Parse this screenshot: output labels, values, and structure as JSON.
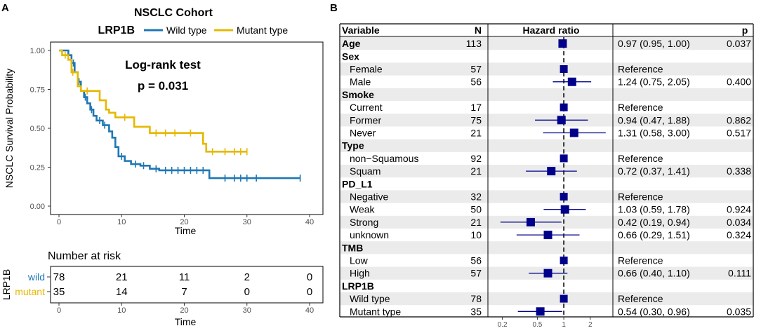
{
  "panel_a": {
    "letter": "A",
    "title": "NSCLC Cohort",
    "legend_title": "LRP1B",
    "test_label": "Log-rank test",
    "p_label": "p = 0.031",
    "risk_title": "Number at risk",
    "risk_ylabel": "LRP1B",
    "risk_groups": [
      {
        "name": "wild",
        "color": "#1f77b4",
        "counts": [
          "78",
          "21",
          "11",
          "2",
          "0"
        ]
      },
      {
        "name": "mutant",
        "color": "#e6b800",
        "counts": [
          "35",
          "14",
          "7",
          "0",
          "0"
        ]
      }
    ],
    "colors": {
      "wild": "#1f77b4",
      "mutant": "#e6b800"
    }
  },
  "panel_b": {
    "letter": "B",
    "headers": {
      "variable": "Variable",
      "n": "N",
      "hr": "Hazard ratio",
      "p": "p"
    },
    "rows": [
      {
        "label": "Age",
        "bold": true,
        "indent": false,
        "n": "113",
        "est": 0.97,
        "lo": 0.95,
        "hi": 1.0,
        "ci": "0.97 (0.95, 1.00)",
        "p": "0.037",
        "shade": true
      },
      {
        "label": "Sex",
        "bold": true,
        "indent": false,
        "n": "",
        "est": null,
        "ci": "",
        "p": "",
        "shade": false
      },
      {
        "label": "Female",
        "bold": false,
        "indent": true,
        "n": "57",
        "est": 1.0,
        "lo": 1.0,
        "hi": 1.0,
        "ci": "Reference",
        "p": "",
        "shade": true
      },
      {
        "label": "Male",
        "bold": false,
        "indent": true,
        "n": "56",
        "est": 1.24,
        "lo": 0.75,
        "hi": 2.05,
        "ci": "1.24 (0.75, 2.05)",
        "p": "0.400",
        "shade": false
      },
      {
        "label": "Smoke",
        "bold": true,
        "indent": false,
        "n": "",
        "est": null,
        "ci": "",
        "p": "",
        "shade": true
      },
      {
        "label": "Current",
        "bold": false,
        "indent": true,
        "n": "17",
        "est": 1.0,
        "lo": 1.0,
        "hi": 1.0,
        "ci": "Reference",
        "p": "",
        "shade": false
      },
      {
        "label": "Former",
        "bold": false,
        "indent": true,
        "n": "75",
        "est": 0.94,
        "lo": 0.47,
        "hi": 1.88,
        "ci": "0.94 (0.47, 1.88)",
        "p": "0.862",
        "shade": true
      },
      {
        "label": "Never",
        "bold": false,
        "indent": true,
        "n": "21",
        "est": 1.31,
        "lo": 0.58,
        "hi": 3.0,
        "ci": "1.31 (0.58, 3.00)",
        "p": "0.517",
        "shade": false
      },
      {
        "label": "Type",
        "bold": true,
        "indent": false,
        "n": "",
        "est": null,
        "ci": "",
        "p": "",
        "shade": true
      },
      {
        "label": "non−Squamous",
        "bold": false,
        "indent": true,
        "n": "92",
        "est": 1.0,
        "lo": 1.0,
        "hi": 1.0,
        "ci": "Reference",
        "p": "",
        "shade": false
      },
      {
        "label": "Squam",
        "bold": false,
        "indent": true,
        "n": "21",
        "est": 0.72,
        "lo": 0.37,
        "hi": 1.41,
        "ci": "0.72 (0.37, 1.41)",
        "p": "0.338",
        "shade": true
      },
      {
        "label": "PD_L1",
        "bold": true,
        "indent": false,
        "n": "",
        "est": null,
        "ci": "",
        "p": "",
        "shade": false
      },
      {
        "label": "Negative",
        "bold": false,
        "indent": true,
        "n": "32",
        "est": 1.0,
        "lo": 1.0,
        "hi": 1.0,
        "ci": "Reference",
        "p": "",
        "shade": true
      },
      {
        "label": "Weak",
        "bold": false,
        "indent": true,
        "n": "50",
        "est": 1.03,
        "lo": 0.59,
        "hi": 1.78,
        "ci": "1.03 (0.59, 1.78)",
        "p": "0.924",
        "shade": false
      },
      {
        "label": "Strong",
        "bold": false,
        "indent": true,
        "n": "21",
        "est": 0.42,
        "lo": 0.19,
        "hi": 0.94,
        "ci": "0.42 (0.19, 0.94)",
        "p": "0.034",
        "shade": true
      },
      {
        "label": "unknown",
        "bold": false,
        "indent": true,
        "n": "10",
        "est": 0.66,
        "lo": 0.29,
        "hi": 1.51,
        "ci": "0.66 (0.29, 1.51)",
        "p": "0.324",
        "shade": false
      },
      {
        "label": "TMB",
        "bold": true,
        "indent": false,
        "n": "",
        "est": null,
        "ci": "",
        "p": "",
        "shade": true
      },
      {
        "label": "Low",
        "bold": false,
        "indent": true,
        "n": "56",
        "est": 1.0,
        "lo": 1.0,
        "hi": 1.0,
        "ci": "Reference",
        "p": "",
        "shade": false
      },
      {
        "label": "High",
        "bold": false,
        "indent": true,
        "n": "57",
        "est": 0.66,
        "lo": 0.4,
        "hi": 1.1,
        "ci": "0.66 (0.40, 1.10)",
        "p": "0.111",
        "shade": true
      },
      {
        "label": "LRP1B",
        "bold": true,
        "indent": false,
        "n": "",
        "est": null,
        "ci": "",
        "p": "",
        "shade": false
      },
      {
        "label": "Wild type",
        "bold": false,
        "indent": true,
        "n": "78",
        "est": 1.0,
        "lo": 1.0,
        "hi": 1.0,
        "ci": "Reference",
        "p": "",
        "shade": true
      },
      {
        "label": "Mutant type",
        "bold": false,
        "indent": true,
        "n": "35",
        "est": 0.54,
        "lo": 0.3,
        "hi": 0.96,
        "ci": "0.54 (0.30, 0.96)",
        "p": "0.035",
        "shade": false
      }
    ],
    "marker_color": "#00008b"
  },
  "chart_data": [
    {
      "type": "line",
      "title": "NSCLC Cohort",
      "xlabel": "Time",
      "ylabel": "NSCLC  Survival Probability",
      "xlim": [
        0,
        40
      ],
      "ylim": [
        0,
        1
      ],
      "x_ticks": [
        "0",
        "10",
        "20",
        "30",
        "40"
      ],
      "y_ticks": [
        "0.00",
        "0.25",
        "0.50",
        "0.75",
        "1.00"
      ],
      "legend": [
        "Wild type",
        "Mutant type"
      ],
      "series": [
        {
          "name": "Wild type",
          "color": "#1f77b4",
          "steps": [
            [
              0,
              1.0
            ],
            [
              1.5,
              0.97
            ],
            [
              2.0,
              0.92
            ],
            [
              2.5,
              0.86
            ],
            [
              3.0,
              0.8
            ],
            [
              3.5,
              0.74
            ],
            [
              4.0,
              0.7
            ],
            [
              4.5,
              0.66
            ],
            [
              5.0,
              0.62
            ],
            [
              5.5,
              0.58
            ],
            [
              6.0,
              0.55
            ],
            [
              7.0,
              0.52
            ],
            [
              8.0,
              0.48
            ],
            [
              8.5,
              0.44
            ],
            [
              9.0,
              0.38
            ],
            [
              9.5,
              0.32
            ],
            [
              10.5,
              0.29
            ],
            [
              11.5,
              0.27
            ],
            [
              13.0,
              0.26
            ],
            [
              14.5,
              0.24
            ],
            [
              16.0,
              0.23
            ],
            [
              24.0,
              0.18
            ],
            [
              38.5,
              0.18
            ]
          ],
          "censor": [
            [
              2.3,
              0.92
            ],
            [
              3.2,
              0.8
            ],
            [
              4.2,
              0.7
            ],
            [
              5.2,
              0.62
            ],
            [
              6.5,
              0.55
            ],
            [
              7.3,
              0.52
            ],
            [
              10.0,
              0.32
            ],
            [
              12.2,
              0.27
            ],
            [
              13.5,
              0.26
            ],
            [
              15.5,
              0.24
            ],
            [
              17.0,
              0.23
            ],
            [
              18.0,
              0.23
            ],
            [
              19.0,
              0.23
            ],
            [
              20.0,
              0.23
            ],
            [
              21.0,
              0.23
            ],
            [
              22.0,
              0.23
            ],
            [
              23.0,
              0.23
            ],
            [
              26.5,
              0.18
            ],
            [
              28.0,
              0.18
            ],
            [
              29.0,
              0.18
            ],
            [
              30.0,
              0.18
            ],
            [
              31.5,
              0.18
            ],
            [
              38.5,
              0.18
            ]
          ]
        },
        {
          "name": "Mutant type",
          "color": "#e6b800",
          "steps": [
            [
              0,
              1.0
            ],
            [
              0.5,
              0.97
            ],
            [
              1.5,
              0.94
            ],
            [
              2.0,
              0.86
            ],
            [
              3.0,
              0.77
            ],
            [
              3.5,
              0.74
            ],
            [
              6.5,
              0.68
            ],
            [
              7.5,
              0.62
            ],
            [
              8.0,
              0.6
            ],
            [
              9.0,
              0.57
            ],
            [
              12.0,
              0.51
            ],
            [
              14.5,
              0.47
            ],
            [
              23.0,
              0.4
            ],
            [
              23.5,
              0.35
            ],
            [
              30.0,
              0.35
            ]
          ],
          "censor": [
            [
              1.0,
              0.97
            ],
            [
              2.2,
              0.86
            ],
            [
              4.5,
              0.74
            ],
            [
              10.5,
              0.57
            ],
            [
              15.5,
              0.47
            ],
            [
              17.0,
              0.47
            ],
            [
              18.5,
              0.47
            ],
            [
              21.0,
              0.47
            ],
            [
              24.5,
              0.35
            ],
            [
              26.5,
              0.35
            ],
            [
              28.0,
              0.35
            ],
            [
              29.0,
              0.35
            ],
            [
              30.0,
              0.35
            ]
          ]
        }
      ],
      "annotations": [
        "Log-rank test",
        "p = 0.031"
      ]
    },
    {
      "type": "table",
      "title": "Number at risk",
      "x": [
        0,
        10,
        20,
        30,
        40
      ],
      "xlabel": "Time",
      "series": [
        {
          "name": "wild",
          "values": [
            78,
            21,
            11,
            2,
            0
          ]
        },
        {
          "name": "mutant",
          "values": [
            35,
            14,
            7,
            0,
            0
          ]
        }
      ]
    },
    {
      "type": "scatter",
      "title": "Hazard ratio",
      "x_scale": "log",
      "xlim": [
        0.15,
        3.3
      ],
      "x_ticks": [
        "0.2",
        "0.5",
        "1",
        "2"
      ],
      "reference_line": 1
    }
  ]
}
